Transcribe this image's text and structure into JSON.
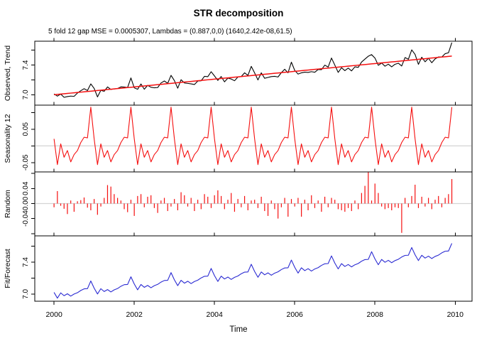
{
  "chart_data": {
    "type": "line",
    "title": "STR decomposition",
    "subtitle": "5 fold 12 gap MSE = 0.0005307, Lambdas = (0.887,0,0) (1640,2.42e-08,61.5)",
    "xlabel": "Time",
    "x_start_year": 2000.0,
    "x_step": "monthly",
    "n_points": 120,
    "xlim": [
      1999.52,
      2010.42
    ],
    "x_ticks": [
      {
        "v": 2000,
        "label": "2000"
      },
      {
        "v": 2002,
        "label": "2002"
      },
      {
        "v": 2004,
        "label": "2004"
      },
      {
        "v": 2006,
        "label": "2006"
      },
      {
        "v": 2008,
        "label": "2008"
      },
      {
        "v": 2010,
        "label": "2010"
      }
    ],
    "panels": [
      {
        "name": "Observed, Trend",
        "ylim": [
          6.86,
          7.72
        ],
        "zero_line": false,
        "series": [
          {
            "key": "observed",
            "color": "#000000",
            "width": 1.1,
            "style": "line"
          },
          {
            "key": "trend",
            "color": "#f50f0f",
            "width": 1.5,
            "style": "line"
          }
        ],
        "yticks": [
          {
            "v": 7.6,
            "label": ""
          },
          {
            "v": 7.4,
            "label": "7.4"
          },
          {
            "v": 7.2,
            "label": ""
          },
          {
            "v": 7.0,
            "label": "7.0"
          }
        ]
      },
      {
        "name": "Seasonality 12",
        "ylim": [
          -0.078,
          0.122
        ],
        "zero_line": true,
        "series": [
          {
            "key": "seasonal",
            "color": "#f50f0f",
            "width": 1.1,
            "style": "line"
          }
        ],
        "yticks": [
          {
            "v": 0.1,
            "label": ""
          },
          {
            "v": 0.05,
            "label": "0.05"
          },
          {
            "v": 0.0,
            "label": ""
          },
          {
            "v": -0.05,
            "label": "-0.05"
          }
        ]
      },
      {
        "name": "Random",
        "ylim": [
          -0.086,
          0.084
        ],
        "zero_line": true,
        "series": [
          {
            "key": "random",
            "color": "#f50f0f",
            "width": 1.2,
            "style": "bars"
          }
        ],
        "yticks": [
          {
            "v": 0.08,
            "label": ""
          },
          {
            "v": 0.04,
            "label": "0.04"
          },
          {
            "v": 0.0,
            "label": "0.00"
          },
          {
            "v": -0.04,
            "label": "-0.04"
          },
          {
            "v": -0.08,
            "label": ""
          }
        ]
      },
      {
        "name": "Fit/Forecast",
        "ylim": [
          6.91,
          7.73
        ],
        "zero_line": false,
        "series": [
          {
            "key": "fit",
            "color": "#2a2ad2",
            "width": 1.1,
            "style": "line"
          }
        ],
        "yticks": [
          {
            "v": 7.6,
            "label": ""
          },
          {
            "v": 7.4,
            "label": "7.4"
          },
          {
            "v": 7.2,
            "label": ""
          },
          {
            "v": 7.0,
            "label": "7.0"
          }
        ]
      }
    ],
    "trend": {
      "shape": "linear",
      "start": 7.0,
      "end": 7.52
    },
    "seasonal_pattern_monthly": [
      0.021,
      -0.056,
      0.006,
      -0.034,
      -0.014,
      -0.048,
      -0.026,
      -0.014,
      0.01,
      0.026,
      0.024,
      0.116
    ],
    "random_values": [
      -0.01,
      0.033,
      -0.006,
      -0.014,
      -0.028,
      0.008,
      -0.022,
      0.006,
      0.009,
      0.016,
      -0.011,
      -0.018,
      0.012,
      -0.03,
      -0.008,
      0.015,
      0.049,
      0.045,
      0.025,
      0.015,
      0.008,
      -0.015,
      -0.023,
      0.01,
      -0.033,
      0.02,
      0.025,
      -0.01,
      0.018,
      0.022,
      -0.012,
      -0.025,
      0.008,
      0.015,
      -0.02,
      -0.008,
      0.012,
      -0.018,
      0.03,
      0.022,
      -0.008,
      0.015,
      -0.02,
      0.01,
      -0.015,
      0.025,
      0.018,
      -0.012,
      0.022,
      0.035,
      0.02,
      -0.015,
      0.01,
      0.028,
      -0.022,
      0.012,
      -0.01,
      0.02,
      -0.018,
      0.008,
      0.01,
      -0.012,
      0.018,
      -0.02,
      -0.033,
      0.008,
      -0.015,
      -0.04,
      -0.01,
      0.015,
      -0.035,
      0.012,
      -0.008,
      0.015,
      -0.035,
      0.01,
      -0.018,
      0.022,
      -0.012,
      0.008,
      -0.022,
      0.018,
      -0.01,
      0.015,
      0.01,
      -0.015,
      -0.018,
      -0.022,
      -0.012,
      -0.02,
      0.008,
      -0.015,
      0.028,
      0.047,
      0.083,
      0.008,
      0.053,
      0.028,
      -0.008,
      -0.015,
      -0.012,
      -0.018,
      -0.01,
      -0.012,
      -0.078,
      0.015,
      -0.01,
      0.02,
      0.05,
      -0.012,
      0.018,
      -0.008,
      0.015,
      -0.015,
      0.01,
      0.02,
      -0.01,
      0.015,
      0.025,
      0.065
    ],
    "derived_series": {
      "observed": "trend + seasonal + random",
      "fit": "trend + seasonal"
    },
    "colors": {
      "observed": "#000000",
      "trend": "#f50f0f",
      "seasonal": "#f50f0f",
      "random": "#f50f0f",
      "fit": "#2a2ad2",
      "zero_line": "#d4d4d4",
      "axis": "#000000"
    },
    "legend": "none",
    "grid": "off"
  }
}
